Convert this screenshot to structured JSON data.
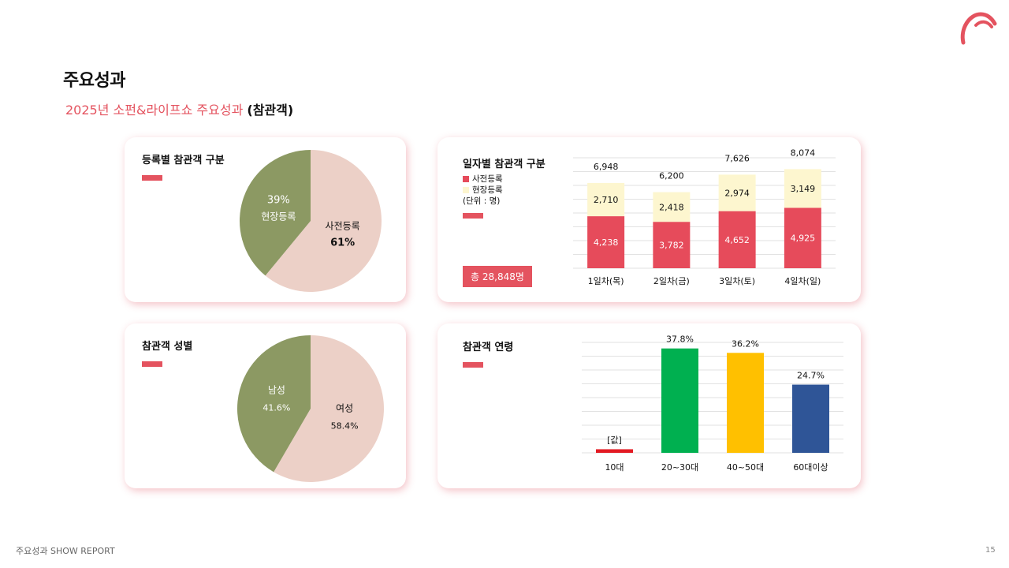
{
  "page": {
    "title": "주요성과",
    "subtitle_accent": "2025년 소펀&라이프쇼 주요성과",
    "subtitle_rest": "(참관객)",
    "footer": "주요성과 SHOW REPORT",
    "page_number": "15",
    "accent_color": "#e4535f"
  },
  "panels": {
    "registration": {
      "title": "등록별 참관객 구분"
    },
    "daily": {
      "title": "일자별 참관객 구분",
      "legend": [
        "사전등록",
        "현장등록"
      ],
      "unit": "(단위 : 명)",
      "total": "총 28,848명"
    },
    "gender": {
      "title": "참관객 성별"
    },
    "age": {
      "title": "참관객 연령"
    }
  },
  "chart_data": [
    {
      "type": "pie",
      "title": "등록별 참관객 구분",
      "labels": [
        "사전등록",
        "현장등록"
      ],
      "values": [
        61,
        39
      ],
      "display": [
        "61%",
        "39%"
      ],
      "colors": [
        "#ecd0c7",
        "#8c9963"
      ]
    },
    {
      "type": "bar",
      "stacked": true,
      "title": "일자별 참관객 구분",
      "categories": [
        "1일차(목)",
        "2일차(금)",
        "3일차(토)",
        "4일차(일)"
      ],
      "series": [
        {
          "name": "사전등록",
          "values": [
            4238,
            3782,
            4652,
            4925
          ],
          "color": "#e64b5b"
        },
        {
          "name": "현장등록",
          "values": [
            2710,
            2418,
            2974,
            3149
          ],
          "color": "#fdf6cf"
        }
      ],
      "totals": [
        6948,
        6200,
        7626,
        8074
      ],
      "ylim": [
        0,
        9000
      ],
      "grid": true
    },
    {
      "type": "pie",
      "title": "참관객 성별",
      "labels": [
        "여성",
        "남성"
      ],
      "values": [
        58.4,
        41.6
      ],
      "display": [
        "58.4%",
        "41.6%"
      ],
      "colors": [
        "#ecd0c7",
        "#8c9963"
      ]
    },
    {
      "type": "bar",
      "title": "참관객 연령",
      "categories": [
        "10대",
        "20~30대",
        "40~50대",
        "60대이상"
      ],
      "values": [
        1.3,
        37.8,
        36.2,
        24.7
      ],
      "data_labels": [
        "[값]",
        "37.8%",
        "36.2%",
        "24.7%"
      ],
      "colors": [
        "#e31b23",
        "#00b050",
        "#ffc000",
        "#2f5597"
      ],
      "ylim": [
        0,
        40
      ],
      "grid": true
    }
  ]
}
